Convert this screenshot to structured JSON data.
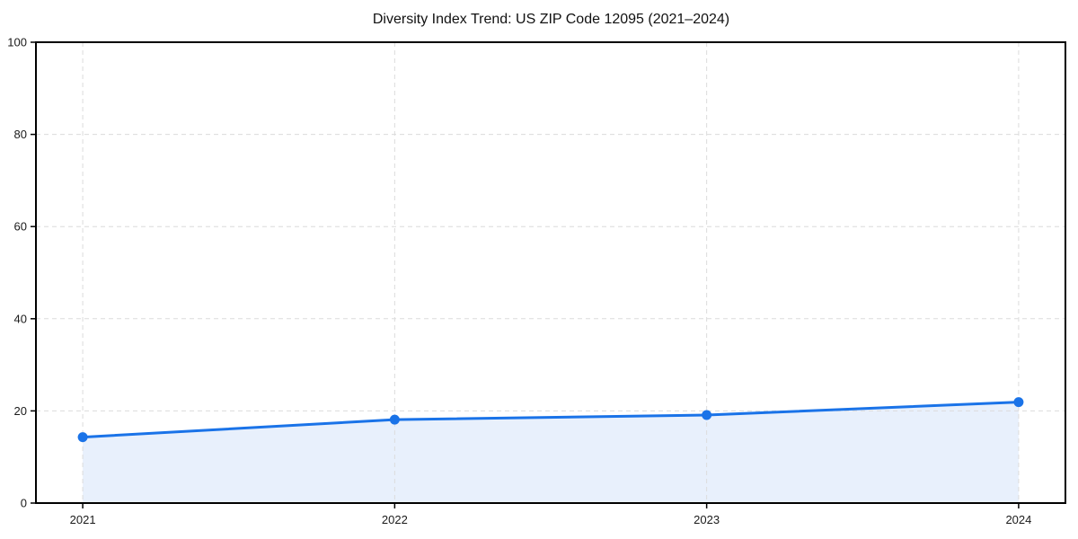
{
  "page": {
    "background_color": "#ffffff"
  },
  "chart_data": {
    "type": "line",
    "title": "Diversity Index Trend: US ZIP Code 12095 (2021–2024)",
    "x_categories": [
      "2021",
      "2022",
      "2023",
      "2024"
    ],
    "series": [
      {
        "name": "Diversity Index",
        "values": [
          14.3,
          18.1,
          19.1,
          21.9
        ]
      }
    ],
    "xlabel": "",
    "ylabel": "",
    "ylim": [
      0,
      100
    ],
    "yticks": [
      0,
      20,
      40,
      60,
      80,
      100
    ],
    "grid": "dashed",
    "legend_position": "none",
    "area_fill": true,
    "marker": "circle",
    "line_color": "#1a73e8",
    "marker_color": "#1a73e8",
    "fill_color": "#e8f0fc",
    "grid_color": "#dcdcdc",
    "axis_color": "#000000",
    "tick_label_color": "#1a1a1a"
  }
}
